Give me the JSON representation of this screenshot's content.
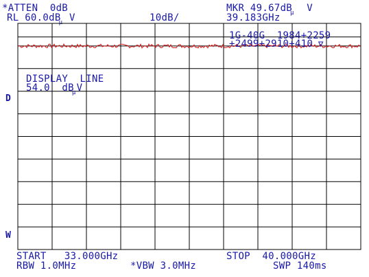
{
  "header": {
    "atten_label": "*ATTEN",
    "atten_value": "0dB",
    "rl_label": "RL",
    "rl_value": "60.0dB",
    "rl_unit": "V",
    "scale": "10dB/",
    "mkr_label": "MKR",
    "mkr_value": "49.67dB",
    "mkr_unit": "V",
    "mkr_freq": "39.183GHz",
    "unit_subscript": "μ"
  },
  "annotation": {
    "line1": "1G-40G  1984+2259",
    "line2": "+2499+2910+410"
  },
  "display_line": {
    "label": "DISPLAY  LINE",
    "value": "54.0",
    "unit": "dB",
    "unit_suffix": "V",
    "subscript": "μ"
  },
  "side_markers": {
    "left_d": "D",
    "left_w": "W"
  },
  "footer": {
    "start_label": "START",
    "start_value": "33.000GHz",
    "stop_label": "STOP",
    "stop_value": "40.000GHz",
    "rbw_label": "RBW",
    "rbw_value": "1.0MHz",
    "vbw_label": "*VBW",
    "vbw_value": "3.0MHz",
    "swp_label": "SWP",
    "swp_value": "140ms"
  },
  "colors": {
    "text": "#1818a8",
    "grid": "#000000",
    "trace": "#d81818",
    "background": "#ffffff"
  },
  "chart_data": {
    "type": "line",
    "xlim": [
      33.0,
      40.0
    ],
    "ylim": [
      -40.0,
      60.0
    ],
    "x_start": 33.0,
    "x_stop": 40.0,
    "trace_level_db": 50.0,
    "trace_noise_db": 0.4,
    "display_line_db": 54.0,
    "marker_x": 39.183,
    "marker_y": 49.67,
    "grid_divisions": {
      "x": 10,
      "y": 10
    }
  }
}
